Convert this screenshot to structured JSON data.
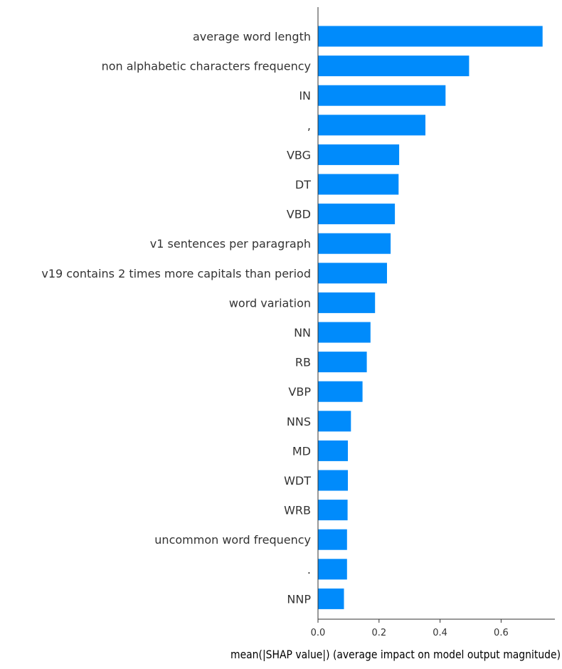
{
  "chart_data": {
    "type": "bar",
    "orientation": "horizontal",
    "categories": [
      "average word length",
      "non alphabetic characters frequency",
      "IN",
      ",",
      "VBG",
      "DT",
      "VBD",
      "v1 sentences per paragraph",
      "v19 contains 2 times more capitals than period",
      "word variation",
      "NN",
      "RB",
      "VBP",
      "NNS",
      "MD",
      "WDT",
      "WRB",
      "uncommon word frequency",
      ".",
      "NNP"
    ],
    "values": [
      0.736,
      0.495,
      0.418,
      0.352,
      0.266,
      0.264,
      0.252,
      0.238,
      0.226,
      0.187,
      0.172,
      0.16,
      0.146,
      0.108,
      0.098,
      0.098,
      0.097,
      0.095,
      0.095,
      0.085
    ],
    "xlabel": "mean(|SHAP value|) (average impact on model output magnitude)",
    "ylabel": "",
    "xticks": [
      0.0,
      0.2,
      0.4,
      0.6
    ],
    "xtick_labels": [
      "0.0",
      "0.2",
      "0.4",
      "0.6"
    ],
    "xlim": [
      0,
      0.77
    ],
    "grid": false,
    "bar_color": "#008bfb"
  }
}
